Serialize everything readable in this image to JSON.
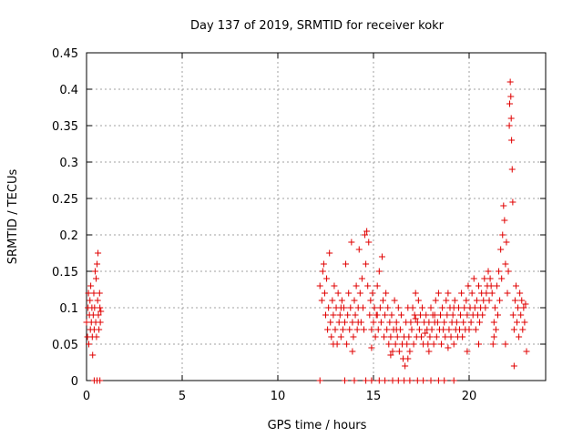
{
  "chart_data": {
    "type": "scatter",
    "title": "Day 137 of 2019, SRMTID for receiver kokr",
    "xlabel": "GPS time / hours",
    "ylabel": "SRMTID / TECUs",
    "xlim": [
      0,
      24
    ],
    "ylim": [
      0,
      0.45
    ],
    "xticks": [
      0,
      5,
      10,
      15,
      20
    ],
    "yticks": [
      0,
      0.05,
      0.1,
      0.15,
      0.2,
      0.25,
      0.3,
      0.35,
      0.4,
      0.45
    ],
    "ytick_labels": [
      "0",
      "0.05",
      "0.1",
      "0.15",
      "0.2",
      "0.25",
      "0.3",
      "0.35",
      "0.4",
      "0.45"
    ],
    "xtick_labels": [
      "0",
      "5",
      "10",
      "15",
      "20"
    ],
    "grid": true,
    "marker": "+",
    "marker_color": "#e00000",
    "series": [
      {
        "name": "",
        "points": [
          [
            0.0,
            0.08
          ],
          [
            0.05,
            0.06
          ],
          [
            0.08,
            0.1
          ],
          [
            0.1,
            0.12
          ],
          [
            0.12,
            0.05
          ],
          [
            0.15,
            0.09
          ],
          [
            0.18,
            0.11
          ],
          [
            0.2,
            0.07
          ],
          [
            0.22,
            0.13
          ],
          [
            0.25,
            0.08
          ],
          [
            0.28,
            0.1
          ],
          [
            0.3,
            0.06
          ],
          [
            0.32,
            0.035
          ],
          [
            0.35,
            0.09
          ],
          [
            0.38,
            0.12
          ],
          [
            0.4,
            0.07
          ],
          [
            0.42,
            0.1
          ],
          [
            0.45,
            0.15
          ],
          [
            0.48,
            0.08
          ],
          [
            0.5,
            0.14
          ],
          [
            0.52,
            0.06
          ],
          [
            0.55,
            0.16
          ],
          [
            0.58,
            0.11
          ],
          [
            0.6,
            0.175
          ],
          [
            0.62,
            0.09
          ],
          [
            0.65,
            0.07
          ],
          [
            0.68,
            0.12
          ],
          [
            0.7,
            0.1
          ],
          [
            0.72,
            0.08
          ],
          [
            0.75,
            0.095
          ],
          [
            0.4,
            0.0
          ],
          [
            0.55,
            0.0
          ],
          [
            0.7,
            0.0
          ],
          [
            12.2,
            0.13
          ],
          [
            12.3,
            0.11
          ],
          [
            12.35,
            0.15
          ],
          [
            12.4,
            0.16
          ],
          [
            12.45,
            0.12
          ],
          [
            12.5,
            0.09
          ],
          [
            12.55,
            0.14
          ],
          [
            12.6,
            0.07
          ],
          [
            12.65,
            0.1
          ],
          [
            12.7,
            0.175
          ],
          [
            12.75,
            0.08
          ],
          [
            12.8,
            0.06
          ],
          [
            12.85,
            0.11
          ],
          [
            12.9,
            0.09
          ],
          [
            12.95,
            0.13
          ],
          [
            13.0,
            0.07
          ],
          [
            13.05,
            0.1
          ],
          [
            13.1,
            0.05
          ],
          [
            13.15,
            0.12
          ],
          [
            13.2,
            0.08
          ],
          [
            13.25,
            0.09
          ],
          [
            13.3,
            0.06
          ],
          [
            13.35,
            0.11
          ],
          [
            13.4,
            0.07
          ],
          [
            13.45,
            0.1
          ],
          [
            13.5,
            0.08
          ],
          [
            13.55,
            0.16
          ],
          [
            13.6,
            0.05
          ],
          [
            13.65,
            0.09
          ],
          [
            13.7,
            0.12
          ],
          [
            13.75,
            0.07
          ],
          [
            13.8,
            0.1
          ],
          [
            13.85,
            0.19
          ],
          [
            13.9,
            0.08
          ],
          [
            13.95,
            0.06
          ],
          [
            14.0,
            0.11
          ],
          [
            14.05,
            0.09
          ],
          [
            14.1,
            0.13
          ],
          [
            14.15,
            0.07
          ],
          [
            14.2,
            0.1
          ],
          [
            14.25,
            0.18
          ],
          [
            14.3,
            0.12
          ],
          [
            14.35,
            0.08
          ],
          [
            14.4,
            0.14
          ],
          [
            14.45,
            0.1
          ],
          [
            14.5,
            0.07
          ],
          [
            14.55,
            0.2
          ],
          [
            14.6,
            0.16
          ],
          [
            14.65,
            0.205
          ],
          [
            14.7,
            0.13
          ],
          [
            14.75,
            0.19
          ],
          [
            14.8,
            0.09
          ],
          [
            14.85,
            0.11
          ],
          [
            14.9,
            0.07
          ],
          [
            14.95,
            0.12
          ],
          [
            15.0,
            0.08
          ],
          [
            15.05,
            0.1
          ],
          [
            15.1,
            0.06
          ],
          [
            15.15,
            0.09
          ],
          [
            15.2,
            0.13
          ],
          [
            15.25,
            0.07
          ],
          [
            15.3,
            0.15
          ],
          [
            15.35,
            0.1
          ],
          [
            15.4,
            0.08
          ],
          [
            15.45,
            0.17
          ],
          [
            15.5,
            0.11
          ],
          [
            15.55,
            0.06
          ],
          [
            15.6,
            0.09
          ],
          [
            15.65,
            0.12
          ],
          [
            15.7,
            0.07
          ],
          [
            15.75,
            0.1
          ],
          [
            15.8,
            0.05
          ],
          [
            15.85,
            0.08
          ],
          [
            15.9,
            0.06
          ],
          [
            15.95,
            0.09
          ],
          [
            16.0,
            0.04
          ],
          [
            16.05,
            0.07
          ],
          [
            16.1,
            0.11
          ],
          [
            16.15,
            0.05
          ],
          [
            16.2,
            0.08
          ],
          [
            16.25,
            0.06
          ],
          [
            16.3,
            0.1
          ],
          [
            16.35,
            0.04
          ],
          [
            16.4,
            0.07
          ],
          [
            16.45,
            0.09
          ],
          [
            16.5,
            0.05
          ],
          [
            16.55,
            0.03
          ],
          [
            16.6,
            0.06
          ],
          [
            16.65,
            0.02
          ],
          [
            16.7,
            0.08
          ],
          [
            16.75,
            0.05
          ],
          [
            16.8,
            0.1
          ],
          [
            16.85,
            0.06
          ],
          [
            16.9,
            0.04
          ],
          [
            16.95,
            0.08
          ],
          [
            17.0,
            0.07
          ],
          [
            17.05,
            0.1
          ],
          [
            17.1,
            0.05
          ],
          [
            17.15,
            0.09
          ],
          [
            17.2,
            0.12
          ],
          [
            17.25,
            0.06
          ],
          [
            17.3,
            0.08
          ],
          [
            17.35,
            0.11
          ],
          [
            17.4,
            0.07
          ],
          [
            17.45,
            0.09
          ],
          [
            17.5,
            0.06
          ],
          [
            17.55,
            0.1
          ],
          [
            17.6,
            0.05
          ],
          [
            17.65,
            0.08
          ],
          [
            17.7,
            0.065
          ],
          [
            17.75,
            0.09
          ],
          [
            17.8,
            0.07
          ],
          [
            17.85,
            0.05
          ],
          [
            17.9,
            0.08
          ],
          [
            17.95,
            0.06
          ],
          [
            18.0,
            0.1
          ],
          [
            18.05,
            0.07
          ],
          [
            18.1,
            0.09
          ],
          [
            18.15,
            0.05
          ],
          [
            18.2,
            0.08
          ],
          [
            18.25,
            0.11
          ],
          [
            18.3,
            0.06
          ],
          [
            18.35,
            0.08
          ],
          [
            18.4,
            0.12
          ],
          [
            18.45,
            0.07
          ],
          [
            18.5,
            0.09
          ],
          [
            18.55,
            0.05
          ],
          [
            18.6,
            0.1
          ],
          [
            18.65,
            0.07
          ],
          [
            18.7,
            0.08
          ],
          [
            18.75,
            0.06
          ],
          [
            18.8,
            0.11
          ],
          [
            18.85,
            0.09
          ],
          [
            18.9,
            0.12
          ],
          [
            18.95,
            0.07
          ],
          [
            19.0,
            0.1
          ],
          [
            19.05,
            0.06
          ],
          [
            19.1,
            0.08
          ],
          [
            19.15,
            0.09
          ],
          [
            19.2,
            0.05
          ],
          [
            19.25,
            0.11
          ],
          [
            19.3,
            0.07
          ],
          [
            19.35,
            0.08
          ],
          [
            19.4,
            0.06
          ],
          [
            19.45,
            0.1
          ],
          [
            19.5,
            0.07
          ],
          [
            19.55,
            0.09
          ],
          [
            19.6,
            0.12
          ],
          [
            19.65,
            0.06
          ],
          [
            19.7,
            0.08
          ],
          [
            19.75,
            0.1
          ],
          [
            19.8,
            0.07
          ],
          [
            19.85,
            0.11
          ],
          [
            19.9,
            0.09
          ],
          [
            19.95,
            0.13
          ],
          [
            20.0,
            0.07
          ],
          [
            20.05,
            0.1
          ],
          [
            20.1,
            0.08
          ],
          [
            20.15,
            0.12
          ],
          [
            20.2,
            0.09
          ],
          [
            20.25,
            0.14
          ],
          [
            20.3,
            0.1
          ],
          [
            20.35,
            0.07
          ],
          [
            20.4,
            0.11
          ],
          [
            20.45,
            0.09
          ],
          [
            20.5,
            0.13
          ],
          [
            20.55,
            0.08
          ],
          [
            20.6,
            0.1
          ],
          [
            20.65,
            0.12
          ],
          [
            20.7,
            0.09
          ],
          [
            20.75,
            0.11
          ],
          [
            20.8,
            0.14
          ],
          [
            20.85,
            0.1
          ],
          [
            20.9,
            0.12
          ],
          [
            20.95,
            0.13
          ],
          [
            21.0,
            0.15
          ],
          [
            21.05,
            0.11
          ],
          [
            21.1,
            0.14
          ],
          [
            21.15,
            0.13
          ],
          [
            21.2,
            0.12
          ],
          [
            21.25,
            0.05
          ],
          [
            21.3,
            0.08
          ],
          [
            21.35,
            0.1
          ],
          [
            21.4,
            0.07
          ],
          [
            21.45,
            0.13
          ],
          [
            21.5,
            0.09
          ],
          [
            21.55,
            0.15
          ],
          [
            21.6,
            0.11
          ],
          [
            21.65,
            0.18
          ],
          [
            21.7,
            0.14
          ],
          [
            21.75,
            0.2
          ],
          [
            21.8,
            0.24
          ],
          [
            21.85,
            0.22
          ],
          [
            21.9,
            0.16
          ],
          [
            21.95,
            0.19
          ],
          [
            22.0,
            0.12
          ],
          [
            22.05,
            0.15
          ],
          [
            22.1,
            0.35
          ],
          [
            22.12,
            0.38
          ],
          [
            22.15,
            0.41
          ],
          [
            22.18,
            0.39
          ],
          [
            22.2,
            0.36
          ],
          [
            22.22,
            0.33
          ],
          [
            22.25,
            0.29
          ],
          [
            22.28,
            0.245
          ],
          [
            22.3,
            0.09
          ],
          [
            22.35,
            0.07
          ],
          [
            22.4,
            0.11
          ],
          [
            22.45,
            0.13
          ],
          [
            22.5,
            0.08
          ],
          [
            22.55,
            0.1
          ],
          [
            22.6,
            0.06
          ],
          [
            22.65,
            0.12
          ],
          [
            22.7,
            0.09
          ],
          [
            22.75,
            0.11
          ],
          [
            22.8,
            0.07
          ],
          [
            22.85,
            0.1
          ],
          [
            22.9,
            0.08
          ],
          [
            22.95,
            0.105
          ],
          [
            23.0,
            0.04
          ],
          [
            22.35,
            0.02
          ],
          [
            21.9,
            0.05
          ],
          [
            21.3,
            0.06
          ],
          [
            20.5,
            0.05
          ],
          [
            19.9,
            0.04
          ],
          [
            18.9,
            0.045
          ],
          [
            17.9,
            0.04
          ],
          [
            16.8,
            0.03
          ],
          [
            15.9,
            0.035
          ],
          [
            14.9,
            0.045
          ],
          [
            13.9,
            0.04
          ],
          [
            12.9,
            0.05
          ],
          [
            12.5,
            0.09
          ],
          [
            13.3,
            0.1
          ],
          [
            14.2,
            0.08
          ],
          [
            15.2,
            0.09
          ],
          [
            16.2,
            0.07
          ],
          [
            17.2,
            0.085
          ],
          [
            18.2,
            0.09
          ],
          [
            19.2,
            0.1
          ],
          [
            12.2,
            0.0
          ],
          [
            13.5,
            0.0
          ],
          [
            14.0,
            0.0
          ],
          [
            14.6,
            0.0
          ],
          [
            14.9,
            0.0
          ],
          [
            15.3,
            0.0
          ],
          [
            15.6,
            0.0
          ],
          [
            16.0,
            0.0
          ],
          [
            16.3,
            0.0
          ],
          [
            16.6,
            0.0
          ],
          [
            16.9,
            0.0
          ],
          [
            17.3,
            0.0
          ],
          [
            17.6,
            0.0
          ],
          [
            18.0,
            0.0
          ],
          [
            18.4,
            0.0
          ],
          [
            18.7,
            0.0
          ],
          [
            19.2,
            0.0
          ]
        ]
      }
    ]
  }
}
